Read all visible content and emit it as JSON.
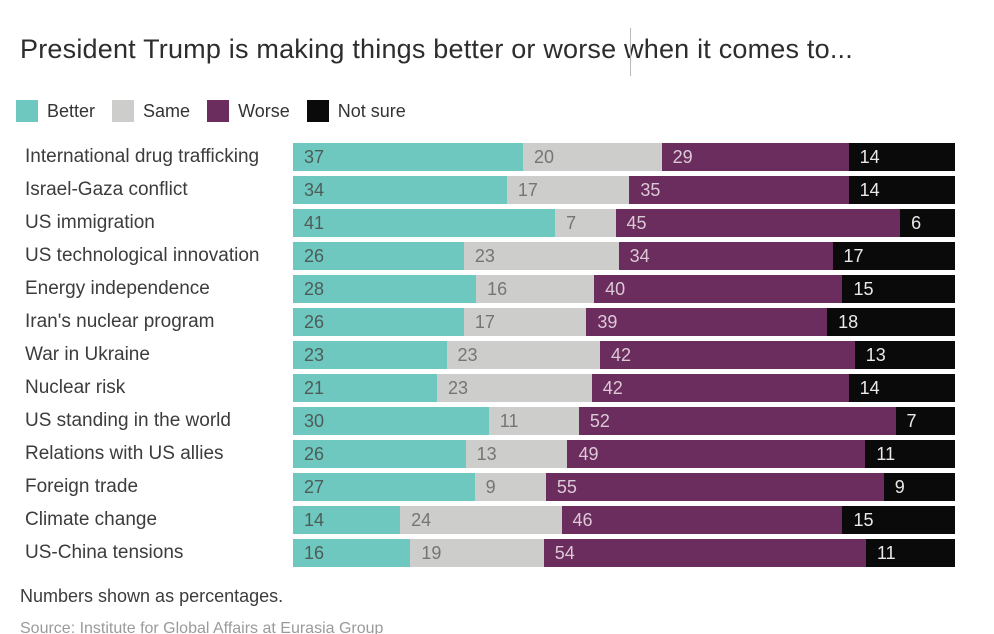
{
  "title": "President Trump is making things better or worse when it comes to...",
  "chart_data": {
    "type": "bar",
    "stacked": true,
    "orientation": "horizontal",
    "value_unit": "percent",
    "xlim": [
      0,
      100
    ],
    "grid": false,
    "legend_position": "top-left",
    "categories": [
      "International drug trafficking",
      "Israel-Gaza conflict",
      "US immigration",
      "US technological innovation",
      "Energy independence",
      "Iran's nuclear program",
      "War in Ukraine",
      "Nuclear risk",
      "US standing in the world",
      "Relations with US allies",
      "Foreign trade",
      "Climate change",
      "US-China tensions"
    ],
    "series": [
      {
        "name": "Better",
        "color": "#6ec8bf",
        "text_color": "#4d5c59",
        "values": [
          37,
          34,
          41,
          26,
          28,
          26,
          23,
          21,
          30,
          26,
          27,
          14,
          16
        ]
      },
      {
        "name": "Same",
        "color": "#cdcdcb",
        "text_color": "#757573",
        "values": [
          20,
          17,
          7,
          23,
          16,
          17,
          23,
          23,
          11,
          13,
          9,
          24,
          19
        ]
      },
      {
        "name": "Worse",
        "color": "#6b2c5e",
        "text_color": "#dcc9d6",
        "values": [
          29,
          35,
          45,
          34,
          40,
          39,
          42,
          42,
          52,
          49,
          55,
          46,
          54
        ]
      },
      {
        "name": "Not sure",
        "color": "#0a0a0a",
        "text_color": "#e9e9e9",
        "values": [
          14,
          14,
          6,
          17,
          15,
          18,
          13,
          14,
          7,
          11,
          9,
          15,
          11
        ]
      }
    ]
  },
  "footer": {
    "note": "Numbers shown as percentages.",
    "source": "Source:  Institute for Global Affairs at Eurasia Group"
  }
}
